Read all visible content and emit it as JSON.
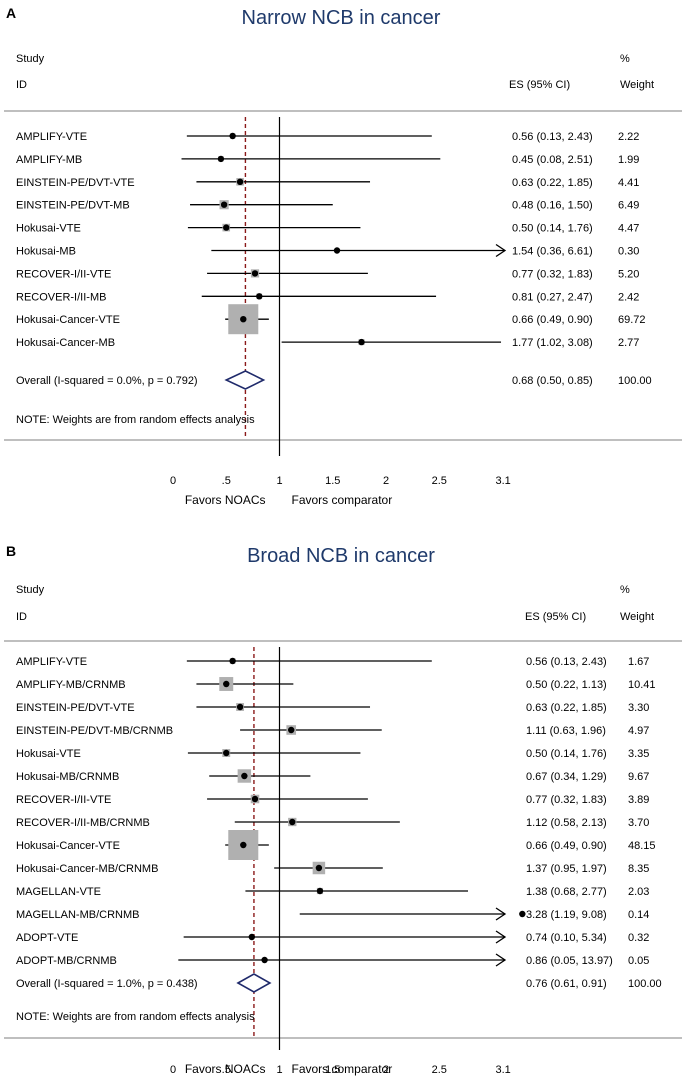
{
  "chart_data": [
    {
      "type": "forest",
      "panel_label": "A",
      "title": "Narrow NCB in cancer",
      "header": {
        "study": "Study",
        "id": "ID",
        "es": "ES (95% CI)",
        "pct": "%",
        "weight": "Weight"
      },
      "rows": [
        {
          "name": "AMPLIFY-VTE",
          "es": 0.56,
          "lo": 0.13,
          "hi": 2.43,
          "ci_text": "0.56 (0.13, 2.43)",
          "weight": 2.22,
          "weight_text": "2.22"
        },
        {
          "name": "AMPLIFY-MB",
          "es": 0.45,
          "lo": 0.08,
          "hi": 2.51,
          "ci_text": "0.45 (0.08, 2.51)",
          "weight": 1.99,
          "weight_text": "1.99"
        },
        {
          "name": "EINSTEIN-PE/DVT-VTE",
          "es": 0.63,
          "lo": 0.22,
          "hi": 1.85,
          "ci_text": "0.63 (0.22, 1.85)",
          "weight": 4.41,
          "weight_text": "4.41"
        },
        {
          "name": "EINSTEIN-PE/DVT-MB",
          "es": 0.48,
          "lo": 0.16,
          "hi": 1.5,
          "ci_text": "0.48 (0.16, 1.50)",
          "weight": 6.49,
          "weight_text": "6.49"
        },
        {
          "name": "Hokusai-VTE",
          "es": 0.5,
          "lo": 0.14,
          "hi": 1.76,
          "ci_text": "0.50 (0.14, 1.76)",
          "weight": 4.47,
          "weight_text": "4.47"
        },
        {
          "name": "Hokusai-MB",
          "es": 1.54,
          "lo": 0.36,
          "hi": 6.61,
          "ci_text": "1.54 (0.36, 6.61)",
          "weight": 0.3,
          "weight_text": "0.30"
        },
        {
          "name": "RECOVER-I/II-VTE",
          "es": 0.77,
          "lo": 0.32,
          "hi": 1.83,
          "ci_text": "0.77 (0.32, 1.83)",
          "weight": 5.2,
          "weight_text": "5.20"
        },
        {
          "name": "RECOVER-I/II-MB",
          "es": 0.81,
          "lo": 0.27,
          "hi": 2.47,
          "ci_text": "0.81 (0.27, 2.47)",
          "weight": 2.42,
          "weight_text": "2.42"
        },
        {
          "name": "Hokusai-Cancer-VTE",
          "es": 0.66,
          "lo": 0.49,
          "hi": 0.9,
          "ci_text": "0.66 (0.49, 0.90)",
          "weight": 69.72,
          "weight_text": "69.72"
        },
        {
          "name": "Hokusai-Cancer-MB",
          "es": 1.77,
          "lo": 1.02,
          "hi": 3.08,
          "ci_text": "1.77 (1.02, 3.08)",
          "weight": 2.77,
          "weight_text": "2.77"
        }
      ],
      "overall": {
        "label": "Overall  (I-squared = 0.0%, p = 0.792)",
        "es": 0.68,
        "lo": 0.5,
        "hi": 0.85,
        "ci_text": "0.68 (0.50, 0.85)",
        "weight_text": "100.00"
      },
      "note": "NOTE: Weights are from random effects analysis",
      "x_ticks": [
        0,
        0.5,
        1,
        1.5,
        2,
        2.5,
        3.1
      ],
      "x_tick_labels": [
        "0",
        ".5",
        "1",
        "1.5",
        "2",
        "2.5",
        "3.1"
      ],
      "xlim": [
        0,
        3.1
      ],
      "null_line": 1,
      "xlabel_left": "Favors NOACs",
      "xlabel_right": "Favors comparator"
    },
    {
      "type": "forest",
      "panel_label": "B",
      "title": "Broad NCB in cancer",
      "header": {
        "study": "Study",
        "id": "ID",
        "es": "ES (95% CI)",
        "pct": "%",
        "weight": "Weight"
      },
      "rows": [
        {
          "name": "AMPLIFY-VTE",
          "es": 0.56,
          "lo": 0.13,
          "hi": 2.43,
          "ci_text": "0.56 (0.13, 2.43)",
          "weight": 1.67,
          "weight_text": "1.67"
        },
        {
          "name": "AMPLIFY-MB/CRNMB",
          "es": 0.5,
          "lo": 0.22,
          "hi": 1.13,
          "ci_text": "0.50 (0.22, 1.13)",
          "weight": 10.41,
          "weight_text": "10.41"
        },
        {
          "name": "EINSTEIN-PE/DVT-VTE",
          "es": 0.63,
          "lo": 0.22,
          "hi": 1.85,
          "ci_text": "0.63 (0.22, 1.85)",
          "weight": 3.3,
          "weight_text": "3.30"
        },
        {
          "name": "EINSTEIN-PE/DVT-MB/CRNMB",
          "es": 1.11,
          "lo": 0.63,
          "hi": 1.96,
          "ci_text": "1.11 (0.63, 1.96)",
          "weight": 4.97,
          "weight_text": "4.97"
        },
        {
          "name": "Hokusai-VTE",
          "es": 0.5,
          "lo": 0.14,
          "hi": 1.76,
          "ci_text": "0.50 (0.14, 1.76)",
          "weight": 3.35,
          "weight_text": "3.35"
        },
        {
          "name": "Hokusai-MB/CRNMB",
          "es": 0.67,
          "lo": 0.34,
          "hi": 1.29,
          "ci_text": "0.67 (0.34, 1.29)",
          "weight": 9.67,
          "weight_text": "9.67"
        },
        {
          "name": "RECOVER-I/II-VTE",
          "es": 0.77,
          "lo": 0.32,
          "hi": 1.83,
          "ci_text": "0.77 (0.32, 1.83)",
          "weight": 3.89,
          "weight_text": "3.89"
        },
        {
          "name": "RECOVER-I/II-MB/CRNMB",
          "es": 1.12,
          "lo": 0.58,
          "hi": 2.13,
          "ci_text": "1.12 (0.58, 2.13)",
          "weight": 3.7,
          "weight_text": "3.70"
        },
        {
          "name": "Hokusai-Cancer-VTE",
          "es": 0.66,
          "lo": 0.49,
          "hi": 0.9,
          "ci_text": "0.66 (0.49, 0.90)",
          "weight": 48.15,
          "weight_text": "48.15"
        },
        {
          "name": "Hokusai-Cancer-MB/CRNMB",
          "es": 1.37,
          "lo": 0.95,
          "hi": 1.97,
          "ci_text": "1.37 (0.95, 1.97)",
          "weight": 8.35,
          "weight_text": "8.35"
        },
        {
          "name": "MAGELLAN-VTE",
          "es": 1.38,
          "lo": 0.68,
          "hi": 2.77,
          "ci_text": "1.38 (0.68, 2.77)",
          "weight": 2.03,
          "weight_text": "2.03"
        },
        {
          "name": "MAGELLAN-MB/CRNMB",
          "es": 3.28,
          "lo": 1.19,
          "hi": 9.08,
          "ci_text": "3.28 (1.19, 9.08)",
          "weight": 0.14,
          "weight_text": "0.14"
        },
        {
          "name": "ADOPT-VTE",
          "es": 0.74,
          "lo": 0.1,
          "hi": 5.34,
          "ci_text": "0.74 (0.10, 5.34)",
          "weight": 0.32,
          "weight_text": "0.32"
        },
        {
          "name": "ADOPT-MB/CRNMB",
          "es": 0.86,
          "lo": 0.05,
          "hi": 13.97,
          "ci_text": "0.86 (0.05, 13.97)",
          "weight": 0.05,
          "weight_text": "0.05"
        }
      ],
      "overall": {
        "label": "Overall  (I-squared = 1.0%, p = 0.438)",
        "es": 0.76,
        "lo": 0.61,
        "hi": 0.91,
        "ci_text": "0.76 (0.61, 0.91)",
        "weight_text": "100.00"
      },
      "note": "NOTE: Weights are from random effects analysis",
      "x_ticks": [
        0,
        0.5,
        1,
        1.5,
        2,
        2.5,
        3.1
      ],
      "x_tick_labels": [
        "0",
        ".5",
        "1",
        "1.5",
        "2",
        "2.5",
        "3.1"
      ],
      "xlim": [
        0,
        3.1
      ],
      "null_line": 1,
      "xlabel_left": "Favors NOACs",
      "xlabel_right": "Favors comparator"
    }
  ],
  "colors": {
    "title": "#1f3a6b",
    "reference_line": "#8b1a1a",
    "diamond": "#1f2a6b",
    "weight_box": "#b0b0b0",
    "frame": "#999999"
  }
}
